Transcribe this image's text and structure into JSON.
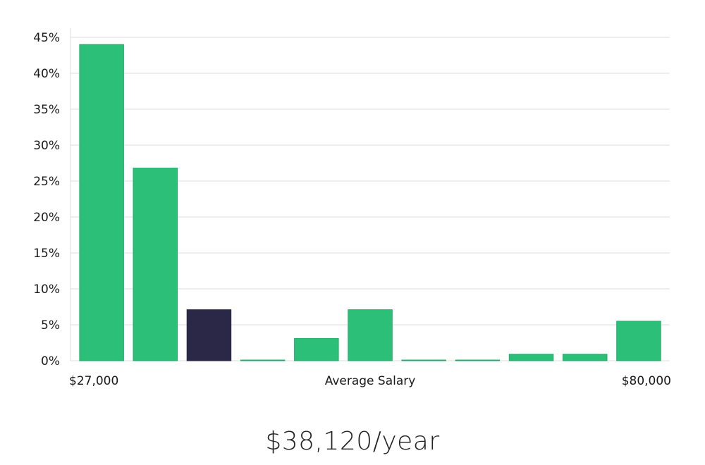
{
  "chart_data": {
    "type": "bar",
    "values": [
      44,
      26.8,
      7.1,
      0.1,
      3.1,
      7.1,
      0.1,
      0.1,
      0.9,
      0.9,
      5.5
    ],
    "highlight_index": 2,
    "ylim": [
      0,
      45
    ],
    "yticks": [
      "0%",
      "5%",
      "10%",
      "15%",
      "20%",
      "25%",
      "30%",
      "35%",
      "40%",
      "45%"
    ],
    "x_min_label": "$27,000",
    "xlabel": "Average Salary",
    "x_max_label": "$80,000",
    "grid": true,
    "colors": {
      "bar": "#2bbf77",
      "bar_stroke": "#1fae66",
      "highlight": "#2a2747",
      "grid": "#dcdcdc"
    }
  },
  "headline": "$38,120/year"
}
